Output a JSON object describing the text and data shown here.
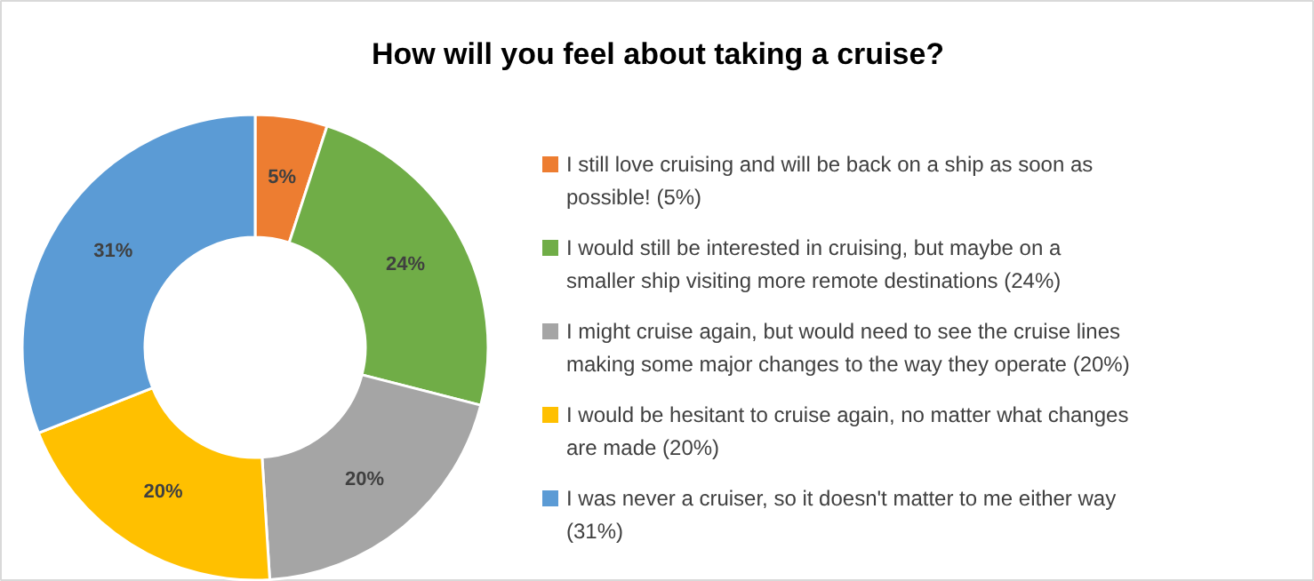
{
  "chart_data": {
    "type": "donut",
    "title": "How will you feel about taking a cruise?",
    "categories": [
      "I still love cruising and will be back on a ship as soon as possible! (5%)",
      "I would still be interested in cruising, but maybe on a smaller ship visiting more remote destinations (24%)",
      "I might cruise again, but would need to see the cruise lines making some major changes to the way they operate (20%)",
      "I would be hesitant to cruise again, no matter what changes are made (20%)",
      "I was never a cruiser, so it doesn't matter to me either way (31%)"
    ],
    "values": [
      5,
      24,
      20,
      20,
      31
    ],
    "value_labels": [
      "5%",
      "24%",
      "20%",
      "20%",
      "31%"
    ],
    "colors": [
      "#ed7d31",
      "#70ad47",
      "#a5a5a5",
      "#ffc000",
      "#5b9bd5"
    ],
    "legend": "right"
  }
}
